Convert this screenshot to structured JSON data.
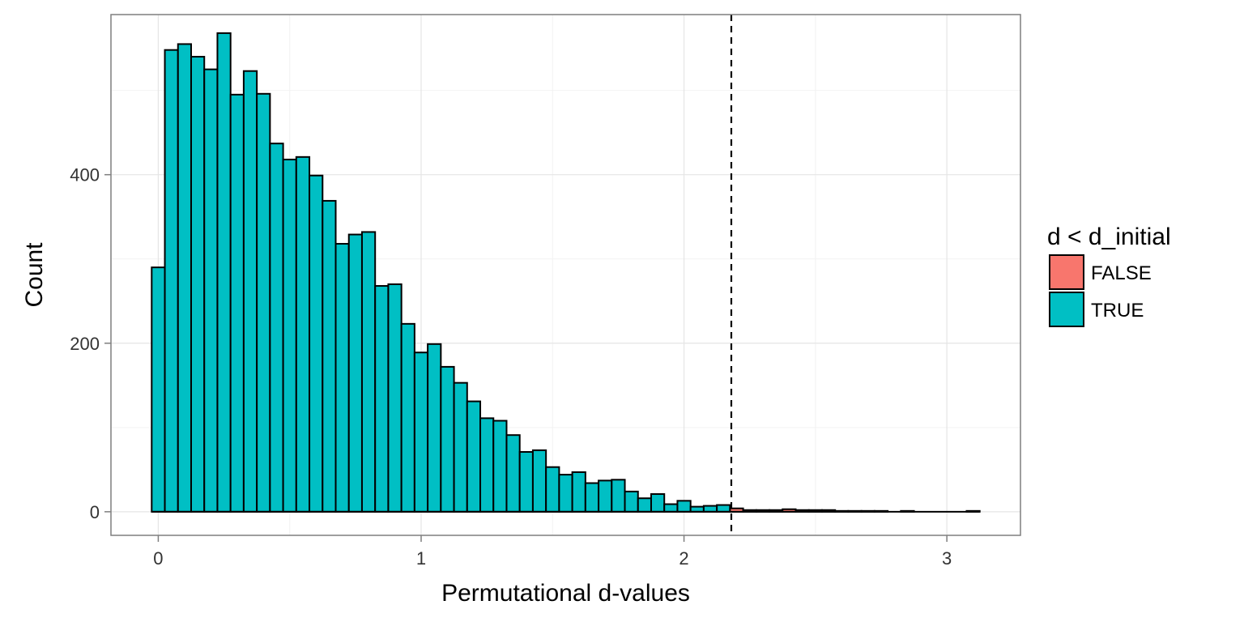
{
  "chart_data": {
    "type": "bar",
    "subtype": "histogram",
    "title": "",
    "xlabel": "Permutational d-values",
    "ylabel": "Count",
    "xlim": [
      -0.18,
      3.28
    ],
    "ylim": [
      -28,
      590
    ],
    "x_ticks": [
      0,
      1,
      2,
      3
    ],
    "x_tick_labels": [
      "0",
      "1",
      "2",
      "3"
    ],
    "y_ticks": [
      0,
      200,
      400
    ],
    "y_tick_labels": [
      "0",
      "200",
      "400"
    ],
    "grid": true,
    "bin_start": -0.025,
    "bin_width": 0.05,
    "cutoff_line": {
      "x": 2.18,
      "style": "dashed"
    },
    "legend": {
      "title": "d < d_initial",
      "placement": "right",
      "entries": [
        {
          "label": "FALSE",
          "color": "#F8766D"
        },
        {
          "label": "TRUE",
          "color": "#00BFC4"
        }
      ]
    },
    "series": [
      {
        "name": "TRUE",
        "color": "#00BFC4",
        "values": [
          290,
          548,
          555,
          540,
          525,
          568,
          495,
          523,
          496,
          437,
          418,
          421,
          399,
          369,
          318,
          329,
          332,
          268,
          270,
          223,
          189,
          199,
          172,
          153,
          131,
          111,
          108,
          91,
          71,
          73,
          53,
          44,
          47,
          34,
          37,
          38,
          24,
          16,
          21,
          9,
          13,
          6,
          7,
          8,
          0,
          0,
          0,
          0,
          0,
          0,
          0,
          0,
          0,
          0,
          0,
          0,
          0,
          0,
          0,
          0,
          0,
          0,
          0
        ]
      },
      {
        "name": "FALSE",
        "color": "#F8766D",
        "values": [
          0,
          0,
          0,
          0,
          0,
          0,
          0,
          0,
          0,
          0,
          0,
          0,
          0,
          0,
          0,
          0,
          0,
          0,
          0,
          0,
          0,
          0,
          0,
          0,
          0,
          0,
          0,
          0,
          0,
          0,
          0,
          0,
          0,
          0,
          0,
          0,
          0,
          0,
          0,
          0,
          0,
          0,
          0,
          0,
          4,
          2,
          2,
          2,
          3,
          2,
          2,
          2,
          1,
          1,
          1,
          1,
          0,
          1,
          0,
          0,
          0,
          0,
          1
        ]
      }
    ]
  }
}
